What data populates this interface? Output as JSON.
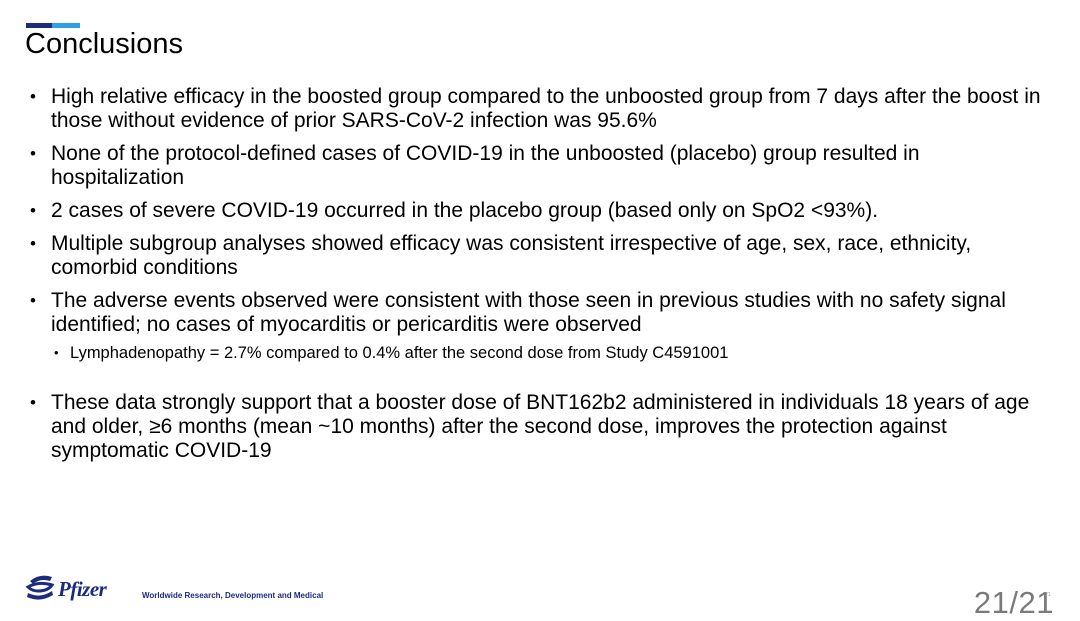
{
  "slide": {
    "title": "Conclusions",
    "accent_dark": "#1b2c7e",
    "accent_light": "#2e9fe6"
  },
  "bullets": [
    "High relative efficacy in the boosted group compared to the unboosted group from 7 days after the boost in those without evidence of prior SARS-CoV-2 infection was 95.6%",
    "None of the protocol-defined cases of COVID-19 in the unboosted (placebo) group resulted in hospitalization",
    "2 cases of severe COVID-19 occurred in the placebo group (based only on SpO2 <93%).",
    "Multiple subgroup analyses showed efficacy was consistent irrespective of age, sex, race, ethnicity, comorbid conditions",
    "The adverse events observed were consistent with those seen in previous studies with no safety signal identified; no cases of myocarditis or pericarditis were observed"
  ],
  "sub_bullet": "Lymphadenopathy = 2.7% compared to 0.4% after the second dose from Study C4591001",
  "final_bullet": "These data strongly support that a booster dose of BNT162b2 administered in individuals 18 years of age and older, ≥6 months (mean ~10 months) after the second dose, improves the protection against symptomatic COVID-19",
  "footer": {
    "logo_text": "Pfizer",
    "logo_icon": "pfizer-logo-icon",
    "tagline": "Worldwide Research, Development and Medical",
    "page_number": "21/21",
    "page_small": "21"
  }
}
